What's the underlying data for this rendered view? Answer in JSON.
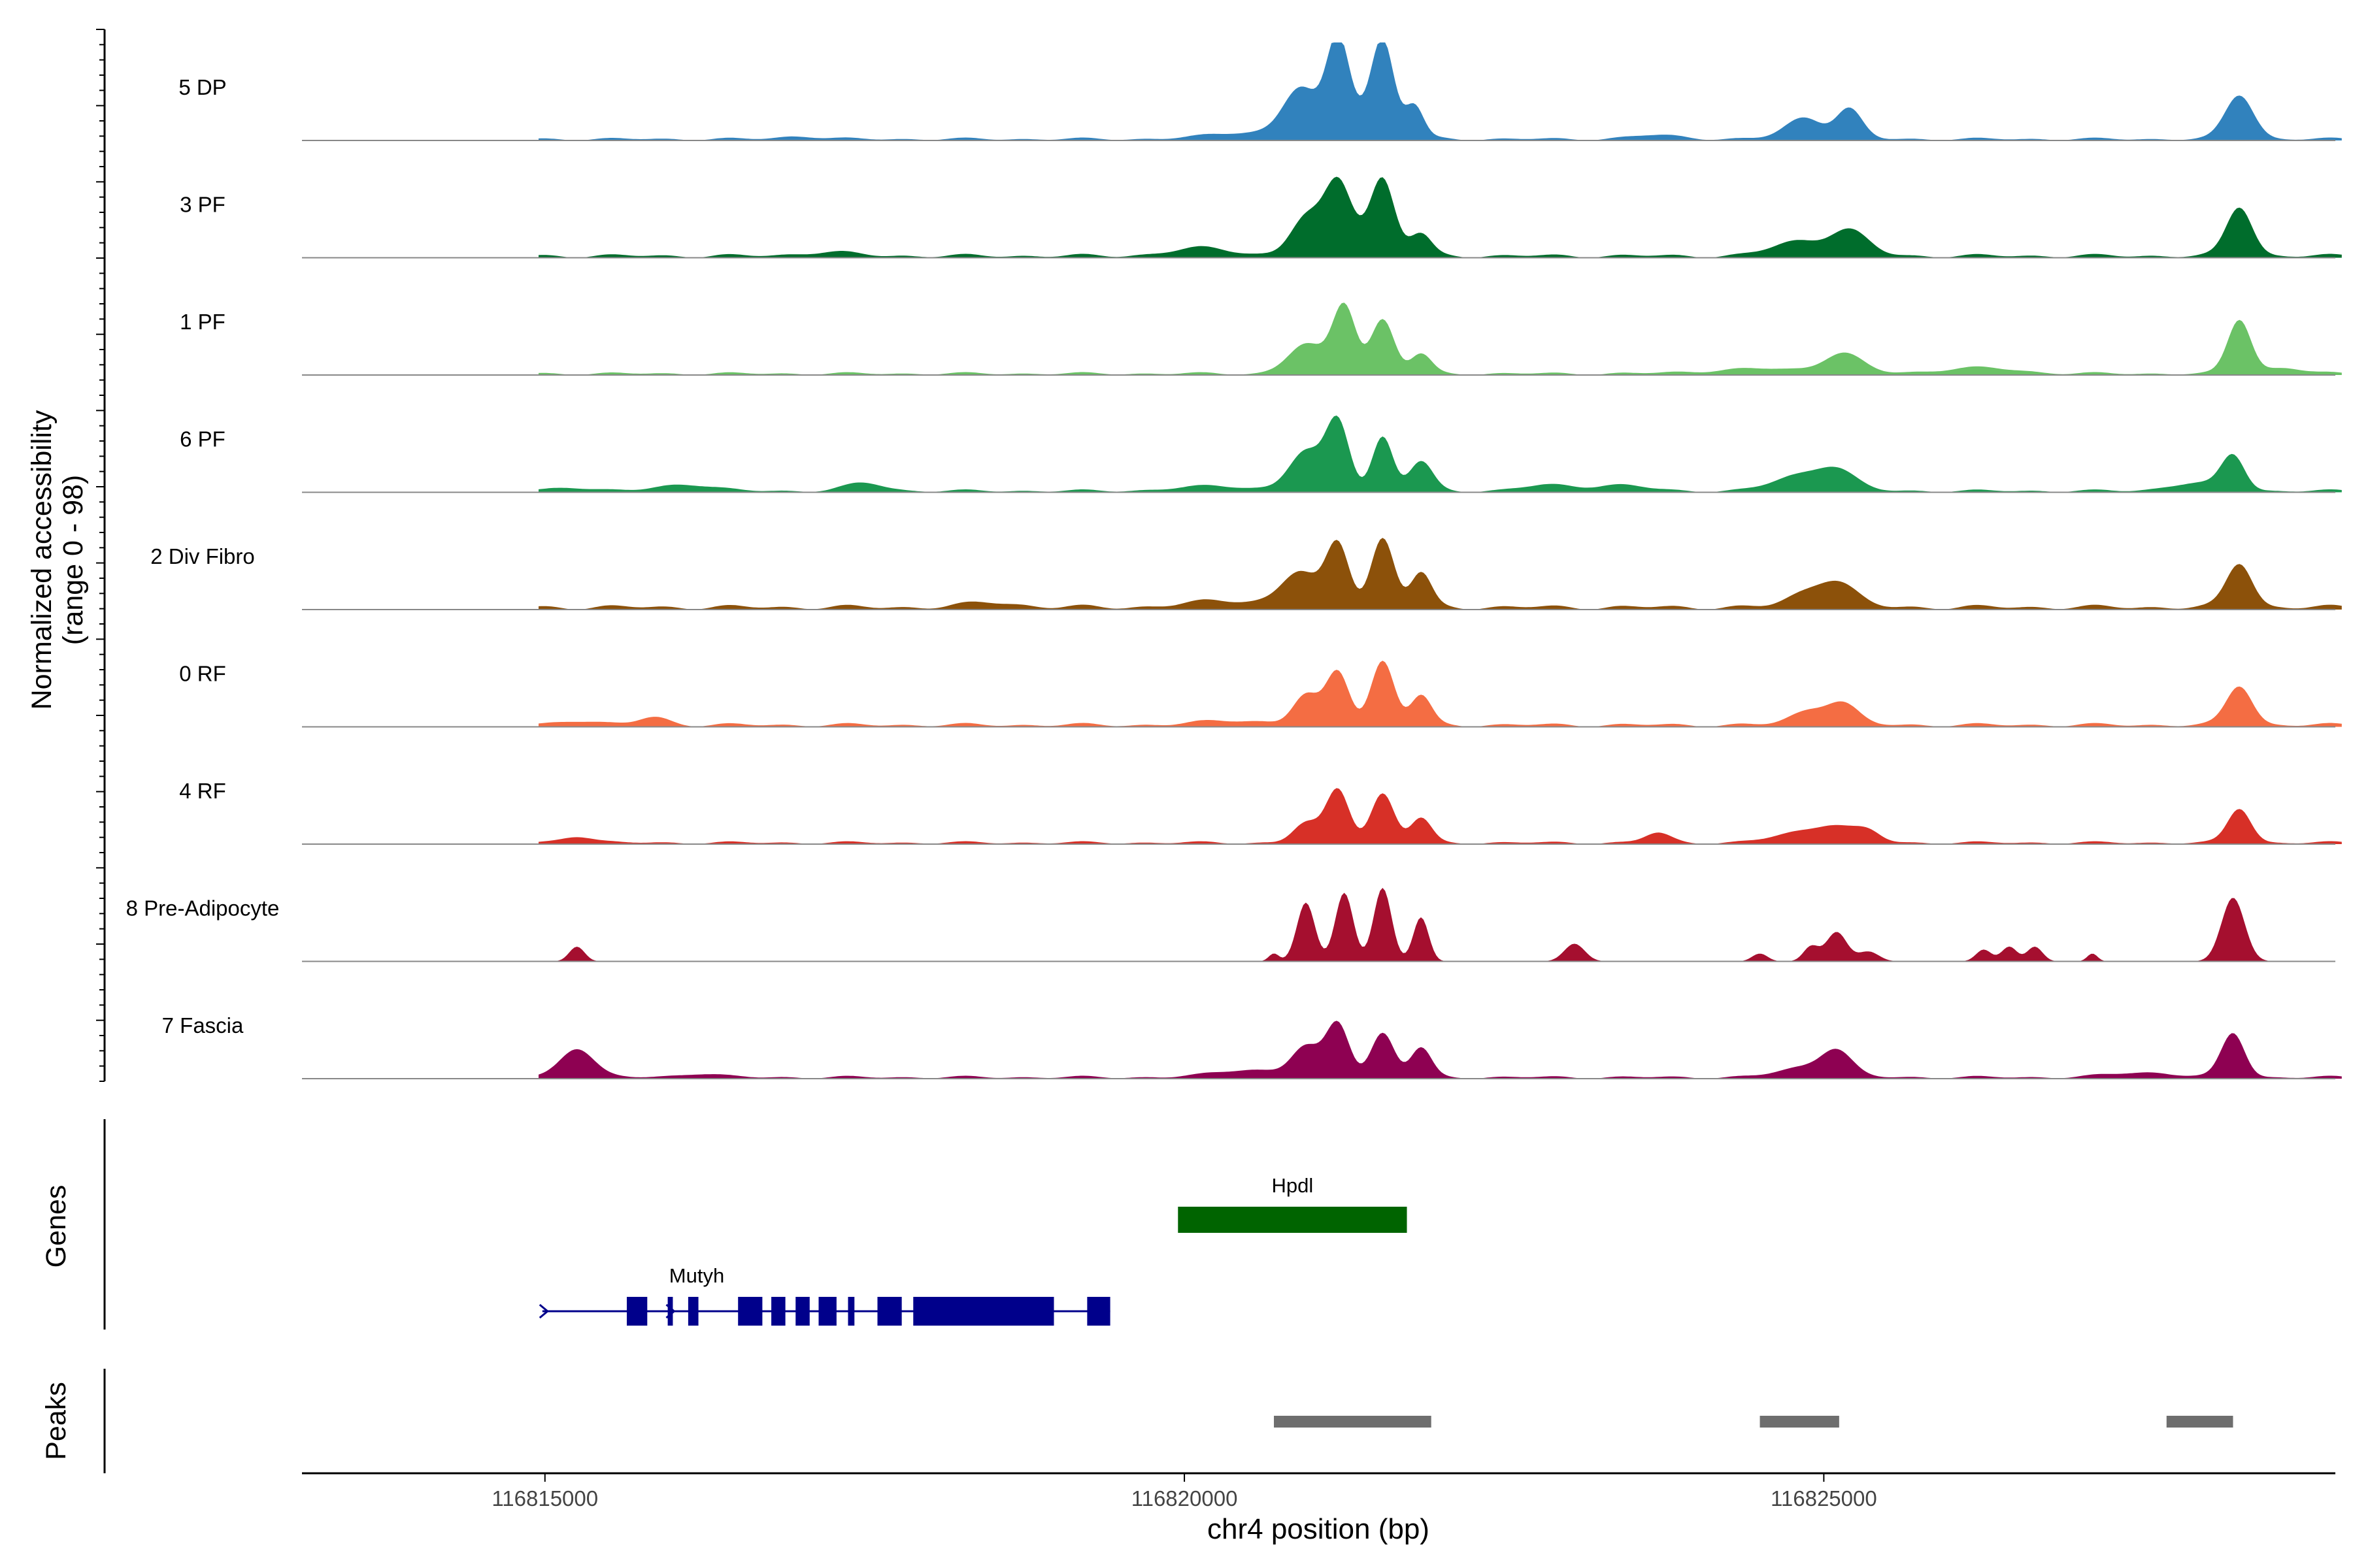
{
  "chart_data": {
    "type": "area",
    "title": "",
    "ylabel_line1": "Normalized accessibility",
    "ylabel_line2": "(range 0 - 98)",
    "xlabel": "chr4 position (bp)",
    "xlim": [
      116813100,
      116829000
    ],
    "ylim": [
      0,
      98
    ],
    "x_ticks": [
      116815000,
      116820000,
      116825000
    ],
    "x_tick_labels": [
      "116815000",
      "116820000",
      "116825000"
    ],
    "genes_label": "Genes",
    "peaks_label": "Peaks",
    "tracks": [
      {
        "name": "5 DP",
        "color": "#3182BD",
        "bg": 0.03,
        "start": 116814950,
        "end": 116829050,
        "peaks": [
          [
            116820900,
            0.45,
            130
          ],
          [
            116821200,
            0.85,
            85
          ],
          [
            116821550,
            0.85,
            85
          ],
          [
            116821800,
            0.3,
            70
          ],
          [
            116821350,
            0.25,
            250
          ],
          [
            116820500,
            0.07,
            300
          ],
          [
            116824850,
            0.22,
            150
          ],
          [
            116825200,
            0.3,
            100
          ],
          [
            116828250,
            0.45,
            110
          ],
          [
            116817000,
            0.03,
            150
          ],
          [
            116823700,
            0.04,
            200
          ]
        ]
      },
      {
        "name": "3 PF",
        "color": "#006D2C",
        "bg": 0.04,
        "start": 116814950,
        "end": 116829050,
        "peaks": [
          [
            116820150,
            0.08,
            250
          ],
          [
            116820950,
            0.35,
            120
          ],
          [
            116821200,
            0.6,
            100
          ],
          [
            116821550,
            0.65,
            90
          ],
          [
            116821850,
            0.2,
            80
          ],
          [
            116821350,
            0.2,
            250
          ],
          [
            116825200,
            0.25,
            150
          ],
          [
            116824800,
            0.15,
            200
          ],
          [
            116828250,
            0.5,
            100
          ],
          [
            116817200,
            0.04,
            200
          ]
        ]
      },
      {
        "name": "1 PF",
        "color": "#6BC266",
        "bg": 0.03,
        "start": 116814950,
        "end": 116829050,
        "peaks": [
          [
            116820950,
            0.3,
            140
          ],
          [
            116821250,
            0.7,
            90
          ],
          [
            116821550,
            0.55,
            90
          ],
          [
            116821850,
            0.2,
            80
          ],
          [
            116825150,
            0.2,
            150
          ],
          [
            116824500,
            0.05,
            400
          ],
          [
            116826200,
            0.06,
            300
          ],
          [
            116828250,
            0.55,
            90
          ],
          [
            116828600,
            0.06,
            150
          ]
        ]
      },
      {
        "name": "6 PF",
        "color": "#1B9850",
        "bg": 0.03,
        "start": 116814950,
        "end": 116829050,
        "peaks": [
          [
            116815200,
            0.04,
            150
          ],
          [
            116816100,
            0.07,
            200
          ],
          [
            116817500,
            0.08,
            150
          ],
          [
            116820250,
            0.05,
            300
          ],
          [
            116820950,
            0.4,
            130
          ],
          [
            116821200,
            0.7,
            90
          ],
          [
            116821550,
            0.55,
            80
          ],
          [
            116821850,
            0.3,
            90
          ],
          [
            116822850,
            0.06,
            200
          ],
          [
            116823400,
            0.06,
            200
          ],
          [
            116824800,
            0.15,
            200
          ],
          [
            116825100,
            0.2,
            150
          ],
          [
            116828200,
            0.35,
            90
          ],
          [
            116827900,
            0.08,
            200
          ]
        ]
      },
      {
        "name": "2 Div Fibro",
        "color": "#8C510A",
        "bg": 0.05,
        "start": 116814950,
        "end": 116829050,
        "peaks": [
          [
            116820350,
            0.07,
            300
          ],
          [
            116820900,
            0.35,
            140
          ],
          [
            116821200,
            0.65,
            90
          ],
          [
            116821550,
            0.7,
            90
          ],
          [
            116821850,
            0.35,
            80
          ],
          [
            116825100,
            0.25,
            150
          ],
          [
            116824850,
            0.12,
            150
          ],
          [
            116828250,
            0.45,
            100
          ],
          [
            116818500,
            0.05,
            200
          ]
        ]
      },
      {
        "name": "0 RF",
        "color": "#F46D43",
        "bg": 0.04,
        "start": 116814950,
        "end": 116829050,
        "peaks": [
          [
            116815250,
            0.05,
            150
          ],
          [
            116815850,
            0.08,
            120
          ],
          [
            116820400,
            0.05,
            250
          ],
          [
            116820950,
            0.3,
            100
          ],
          [
            116821200,
            0.55,
            90
          ],
          [
            116821550,
            0.65,
            90
          ],
          [
            116821850,
            0.3,
            80
          ],
          [
            116824900,
            0.15,
            150
          ],
          [
            116825150,
            0.2,
            120
          ],
          [
            116828250,
            0.4,
            100
          ]
        ]
      },
      {
        "name": "4 RF",
        "color": "#D73027",
        "bg": 0.03,
        "start": 116814950,
        "end": 116829050,
        "peaks": [
          [
            116815250,
            0.07,
            120
          ],
          [
            116820950,
            0.2,
            100
          ],
          [
            116821200,
            0.55,
            90
          ],
          [
            116821550,
            0.5,
            90
          ],
          [
            116821850,
            0.25,
            80
          ],
          [
            116823700,
            0.1,
            100
          ],
          [
            116824800,
            0.1,
            200
          ],
          [
            116825100,
            0.15,
            150
          ],
          [
            116825350,
            0.1,
            100
          ],
          [
            116828250,
            0.35,
            90
          ]
        ]
      },
      {
        "name": "8 Pre-Adipocyte",
        "color": "#A50F2F",
        "bg": 0,
        "start": 116814950,
        "end": 116829050,
        "peaks": [
          [
            116815250,
            0.15,
            60
          ],
          [
            116820700,
            0.08,
            40
          ],
          [
            116820950,
            0.6,
            70
          ],
          [
            116821250,
            0.7,
            70
          ],
          [
            116821550,
            0.75,
            70
          ],
          [
            116821850,
            0.45,
            60
          ],
          [
            116823050,
            0.18,
            80
          ],
          [
            116824500,
            0.08,
            60
          ],
          [
            116824900,
            0.15,
            60
          ],
          [
            116825100,
            0.3,
            80
          ],
          [
            116825350,
            0.1,
            80
          ],
          [
            116826250,
            0.12,
            60
          ],
          [
            116826450,
            0.15,
            60
          ],
          [
            116826650,
            0.15,
            60
          ],
          [
            116827100,
            0.08,
            40
          ],
          [
            116828200,
            0.65,
            90
          ]
        ]
      },
      {
        "name": "7 Fascia",
        "color": "#8E0152",
        "bg": 0.03,
        "start": 116814950,
        "end": 116829050,
        "peaks": [
          [
            116815250,
            0.3,
            130
          ],
          [
            116816200,
            0.04,
            150
          ],
          [
            116820500,
            0.08,
            250
          ],
          [
            116820950,
            0.3,
            110
          ],
          [
            116821200,
            0.55,
            90
          ],
          [
            116821550,
            0.45,
            90
          ],
          [
            116821850,
            0.3,
            80
          ],
          [
            116824850,
            0.1,
            200
          ],
          [
            116825100,
            0.25,
            120
          ],
          [
            116828200,
            0.45,
            90
          ],
          [
            116827500,
            0.05,
            250
          ]
        ]
      }
    ],
    "genes": [
      {
        "name": "Hpdl",
        "start": 116819950,
        "end": 116821740,
        "color": "#006400",
        "strand": "+",
        "exons": [
          [
            116819950,
            116821740
          ]
        ]
      },
      {
        "name": "Mutyh",
        "start": 116814980,
        "end": 116819420,
        "color": "#00008B",
        "strand": "+",
        "exons": [
          [
            116815640,
            116815800
          ],
          [
            116815960,
            116816000
          ],
          [
            116816120,
            116816200
          ],
          [
            116816510,
            116816700
          ],
          [
            116816770,
            116816880
          ],
          [
            116816960,
            116817070
          ],
          [
            116817140,
            116817280
          ],
          [
            116817370,
            116817420
          ],
          [
            116817600,
            116817790
          ],
          [
            116817880,
            116818980
          ],
          [
            116819240,
            116819420
          ]
        ]
      }
    ],
    "peak_regions": [
      {
        "start": 116820700,
        "end": 116821930,
        "color": "#6E6E6E"
      },
      {
        "start": 116824500,
        "end": 116825120,
        "color": "#6E6E6E"
      },
      {
        "start": 116827680,
        "end": 116828200,
        "color": "#6E6E6E"
      }
    ]
  }
}
